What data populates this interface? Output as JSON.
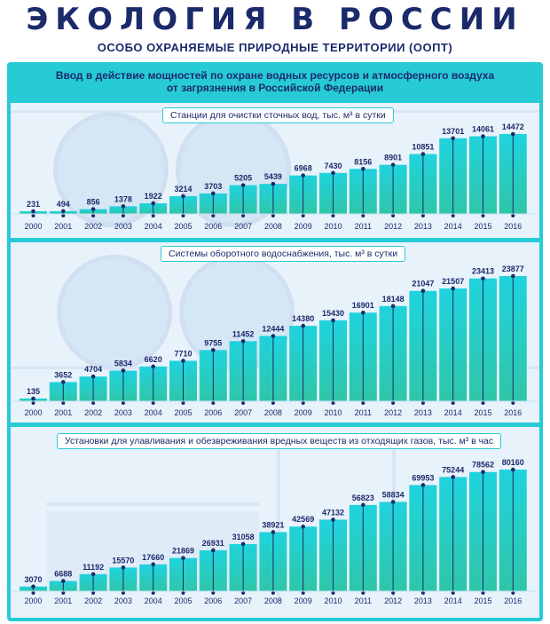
{
  "header": {
    "title": "ЭКОЛОГИЯ В РОССИИ",
    "subtitle": "ОСОБО ОХРАНЯЕМЫЕ ПРИРОДНЫЕ ТЕРРИТОРИИ (ООПТ)"
  },
  "heading": {
    "line1": "Ввод в действие мощностей по охране  водных ресурсов и атмосферного воздуха",
    "line2": "от загрязнения в Российской Федерации"
  },
  "colors": {
    "bar_top": "#1fd3dd",
    "bar_bottom": "#2fc6a8",
    "accent": "#27cbd6",
    "text_dark": "#1b2a6b"
  },
  "chart_data": [
    {
      "type": "bar",
      "title": "Станции для очистки сточных вод, тыс. м³ в сутки",
      "categories": [
        "2000",
        "2001",
        "2002",
        "2003",
        "2004",
        "2005",
        "2006",
        "2007",
        "2008",
        "2009",
        "2010",
        "2011",
        "2012",
        "2013",
        "2014",
        "2015",
        "2016"
      ],
      "values": [
        231,
        494,
        856,
        1378,
        1922,
        3214,
        3703,
        5205,
        5439,
        6968,
        7430,
        8156,
        8901,
        10851,
        13701,
        14061,
        14472
      ],
      "ylim": [
        0,
        14472
      ]
    },
    {
      "type": "bar",
      "title": "Системы оборотного водоснабжения, тыс. м³ в сутки",
      "categories": [
        "2000",
        "2001",
        "2002",
        "2003",
        "2004",
        "2005",
        "2006",
        "2007",
        "2008",
        "2009",
        "2010",
        "2011",
        "2012",
        "2013",
        "2014",
        "2015",
        "2016"
      ],
      "values": [
        135,
        3652,
        4704,
        5834,
        6620,
        7710,
        9755,
        11452,
        12444,
        14380,
        15430,
        16901,
        18148,
        21047,
        21507,
        23413,
        23877
      ],
      "ylim": [
        0,
        23877
      ]
    },
    {
      "type": "bar",
      "title": "Установки для улавливания и обезвреживания вредных веществ из отходящих газов, тыс. м³ в час",
      "categories": [
        "2000",
        "2001",
        "2002",
        "2003",
        "2004",
        "2005",
        "2006",
        "2007",
        "2008",
        "2009",
        "2010",
        "2011",
        "2012",
        "2013",
        "2014",
        "2015",
        "2016"
      ],
      "values": [
        3070,
        6688,
        11192,
        15570,
        17660,
        21869,
        26931,
        31058,
        38921,
        42569,
        47132,
        56823,
        58834,
        69953,
        75244,
        78562,
        80160
      ],
      "ylim": [
        0,
        80160
      ]
    }
  ]
}
